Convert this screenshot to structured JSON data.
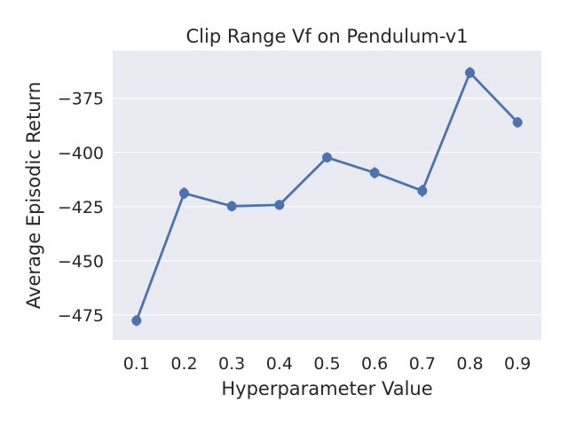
{
  "chart_data": {
    "type": "line",
    "title": "Clip Range Vf on Pendulum-v1",
    "xlabel": "Hyperparameter Value",
    "ylabel": "Average Episodic Return",
    "categories": [
      "0.1",
      "0.2",
      "0.3",
      "0.4",
      "0.5",
      "0.6",
      "0.7",
      "0.8",
      "0.9"
    ],
    "series": [
      {
        "values": [
          -477.6,
          -418.8,
          -424.8,
          -424.2,
          -402.3,
          -409.4,
          -417.7,
          -363.2,
          -386.1
        ],
        "error": [
          2.5,
          2.6,
          2.4,
          2.3,
          2.3,
          2.5,
          2.7,
          2.5,
          2.4
        ],
        "color": "#4c72b0"
      }
    ],
    "ylim": [
      -486.5,
      -353
    ],
    "yticks": [
      -475,
      -450,
      -425,
      -400,
      -375
    ],
    "ytick_labels": [
      "−475",
      "−450",
      "−425",
      "−400",
      "−375"
    ],
    "grid": true,
    "legend": "none"
  }
}
